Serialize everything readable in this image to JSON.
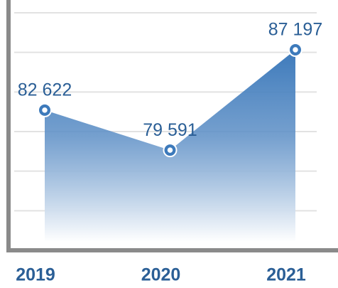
{
  "chart_data": {
    "type": "area",
    "categories": [
      "2019",
      "2020",
      "2021"
    ],
    "values": [
      82622,
      79591,
      87197
    ],
    "value_labels": [
      "82 622",
      "79 591",
      "87 197"
    ],
    "color": "#3d7abb",
    "ylim": [
      72000,
      90000
    ],
    "yticks": [
      75000,
      78000,
      81000,
      84000,
      87000,
      90000
    ],
    "grid": true
  }
}
